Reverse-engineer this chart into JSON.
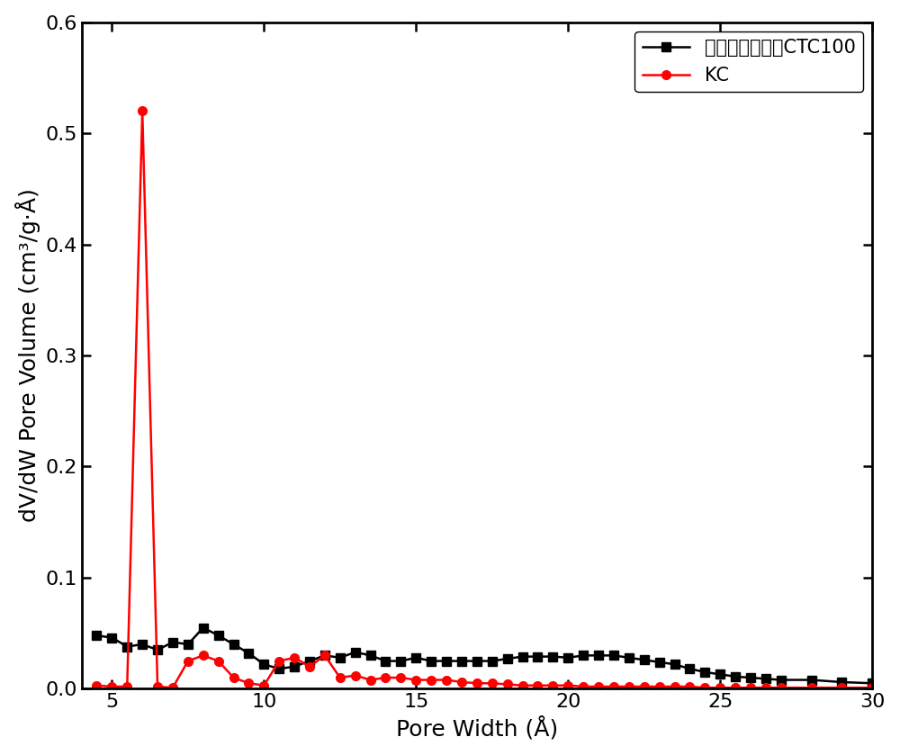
{
  "xlabel": "Pore Width (Å)",
  "ylabel": "dV/dW Pore Volume (cm³/g·Å)",
  "xlim": [
    4,
    30
  ],
  "ylim": [
    0,
    0.6
  ],
  "xticks": [
    5,
    10,
    15,
    20,
    25,
    30
  ],
  "yticks": [
    0.0,
    0.1,
    0.2,
    0.3,
    0.4,
    0.5,
    0.6
  ],
  "series1_label": "商业椰壳活性炭CTC100",
  "series1_color": "#000000",
  "series1_marker": "s",
  "series1_x": [
    4.5,
    5.0,
    5.5,
    6.0,
    6.5,
    7.0,
    7.5,
    8.0,
    8.5,
    9.0,
    9.5,
    10.0,
    10.5,
    11.0,
    11.5,
    12.0,
    12.5,
    13.0,
    13.5,
    14.0,
    14.5,
    15.0,
    15.5,
    16.0,
    16.5,
    17.0,
    17.5,
    18.0,
    18.5,
    19.0,
    19.5,
    20.0,
    20.5,
    21.0,
    21.5,
    22.0,
    22.5,
    23.0,
    23.5,
    24.0,
    24.5,
    25.0,
    25.5,
    26.0,
    26.5,
    27.0,
    28.0,
    29.0,
    30.0
  ],
  "series1_y": [
    0.048,
    0.046,
    0.038,
    0.04,
    0.035,
    0.042,
    0.04,
    0.055,
    0.048,
    0.04,
    0.032,
    0.022,
    0.018,
    0.02,
    0.025,
    0.03,
    0.028,
    0.033,
    0.03,
    0.025,
    0.025,
    0.028,
    0.025,
    0.025,
    0.025,
    0.025,
    0.025,
    0.027,
    0.029,
    0.029,
    0.029,
    0.028,
    0.03,
    0.03,
    0.03,
    0.028,
    0.026,
    0.024,
    0.022,
    0.018,
    0.015,
    0.013,
    0.011,
    0.01,
    0.009,
    0.008,
    0.008,
    0.006,
    0.005
  ],
  "series2_label": "KC",
  "series2_color": "#ff0000",
  "series2_marker": "o",
  "series2_x": [
    4.5,
    5.0,
    5.5,
    6.0,
    6.5,
    7.0,
    7.5,
    8.0,
    8.5,
    9.0,
    9.5,
    10.0,
    10.5,
    11.0,
    11.5,
    12.0,
    12.5,
    13.0,
    13.5,
    14.0,
    14.5,
    15.0,
    15.5,
    16.0,
    16.5,
    17.0,
    17.5,
    18.0,
    18.5,
    19.0,
    19.5,
    20.0,
    20.5,
    21.0,
    21.5,
    22.0,
    22.5,
    23.0,
    23.5,
    24.0,
    24.5,
    25.0,
    25.5,
    26.0,
    26.5,
    27.0,
    28.0,
    29.0,
    30.0
  ],
  "series2_y": [
    0.003,
    0.002,
    0.002,
    0.52,
    0.002,
    0.001,
    0.025,
    0.03,
    0.025,
    0.01,
    0.005,
    0.003,
    0.025,
    0.028,
    0.02,
    0.03,
    0.01,
    0.012,
    0.008,
    0.01,
    0.01,
    0.008,
    0.008,
    0.008,
    0.006,
    0.005,
    0.005,
    0.004,
    0.003,
    0.003,
    0.003,
    0.003,
    0.002,
    0.002,
    0.002,
    0.002,
    0.002,
    0.002,
    0.002,
    0.002,
    0.001,
    0.001,
    0.001,
    0.001,
    0.001,
    0.001,
    0.001,
    0.001,
    0.001
  ],
  "linewidth": 1.8,
  "markersize": 7,
  "legend_fontsize": 15,
  "axis_label_fontsize": 18,
  "tick_fontsize": 16,
  "figure_width": 10.0,
  "figure_height": 8.39,
  "spine_linewidth": 2.0
}
